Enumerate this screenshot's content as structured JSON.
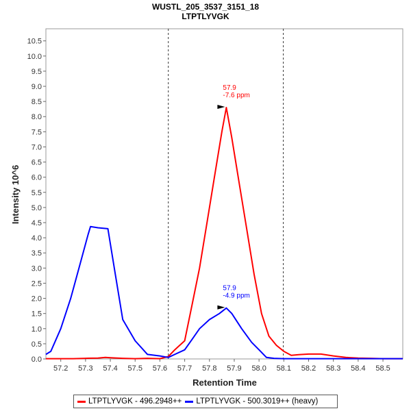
{
  "chart_data": {
    "type": "line",
    "title": "WUSTL_205_3537_3151_18",
    "subtitle": "LTPTLYVGK",
    "xlabel": "Retention Time",
    "ylabel": "Intensity 10^6",
    "xlim": [
      57.14,
      58.58
    ],
    "ylim": [
      0,
      10.9
    ],
    "xticks": [
      57.2,
      57.3,
      57.4,
      57.5,
      57.6,
      57.7,
      57.8,
      57.9,
      58.0,
      58.1,
      58.2,
      58.3,
      58.4,
      58.5
    ],
    "yticks": [
      0.0,
      0.5,
      1.0,
      1.5,
      2.0,
      2.5,
      3.0,
      3.5,
      4.0,
      4.5,
      5.0,
      5.5,
      6.0,
      6.5,
      7.0,
      7.5,
      8.0,
      8.5,
      9.0,
      9.5,
      10.0,
      10.5
    ],
    "boundaries": [
      57.634,
      58.098
    ],
    "series": [
      {
        "name": "LTPTLYVGK - 496.2948++",
        "color": "#ff0000",
        "x": [
          57.14,
          57.25,
          57.3,
          57.35,
          57.38,
          57.4,
          57.45,
          57.5,
          57.55,
          57.6,
          57.634,
          57.66,
          57.7,
          57.73,
          57.76,
          57.79,
          57.82,
          57.85,
          57.868,
          57.89,
          57.92,
          57.95,
          57.98,
          58.01,
          58.04,
          58.07,
          58.1,
          58.13,
          58.16,
          58.2,
          58.25,
          58.3,
          58.35,
          58.4,
          58.45,
          58.5,
          58.58
        ],
        "y": [
          0.01,
          0.01,
          0.02,
          0.03,
          0.05,
          0.04,
          0.02,
          0.01,
          0.02,
          0.01,
          0.08,
          0.3,
          0.6,
          1.8,
          3.0,
          4.5,
          6.0,
          7.5,
          8.3,
          7.3,
          5.8,
          4.3,
          2.8,
          1.5,
          0.75,
          0.45,
          0.25,
          0.12,
          0.14,
          0.16,
          0.16,
          0.1,
          0.05,
          0.03,
          0.02,
          0.01,
          0.01
        ]
      },
      {
        "name": "LTPTLYVGK - 500.3019++ (heavy)",
        "color": "#0000ff",
        "x": [
          57.14,
          57.16,
          57.2,
          57.24,
          57.28,
          57.31,
          57.32,
          57.35,
          57.39,
          57.42,
          57.45,
          57.5,
          57.55,
          57.6,
          57.634,
          57.66,
          57.7,
          57.73,
          57.76,
          57.8,
          57.84,
          57.868,
          57.89,
          57.93,
          57.97,
          58.0,
          58.03,
          58.06,
          58.1,
          58.2,
          58.3,
          58.4,
          58.58
        ],
        "y": [
          0.15,
          0.25,
          1.0,
          2.0,
          3.2,
          4.1,
          4.37,
          4.33,
          4.3,
          2.8,
          1.3,
          0.6,
          0.15,
          0.1,
          0.05,
          0.15,
          0.3,
          0.65,
          1.0,
          1.3,
          1.5,
          1.68,
          1.5,
          1.0,
          0.55,
          0.3,
          0.05,
          0.02,
          0.01,
          0.01,
          0.01,
          0.01,
          0.01
        ]
      }
    ],
    "annotations": [
      {
        "series": 0,
        "x": 57.868,
        "y": 8.3,
        "lines": [
          "57.9",
          "-7.6 ppm"
        ]
      },
      {
        "series": 1,
        "x": 57.868,
        "y": 1.68,
        "lines": [
          "57.9",
          "-4.9 ppm"
        ]
      }
    ]
  }
}
